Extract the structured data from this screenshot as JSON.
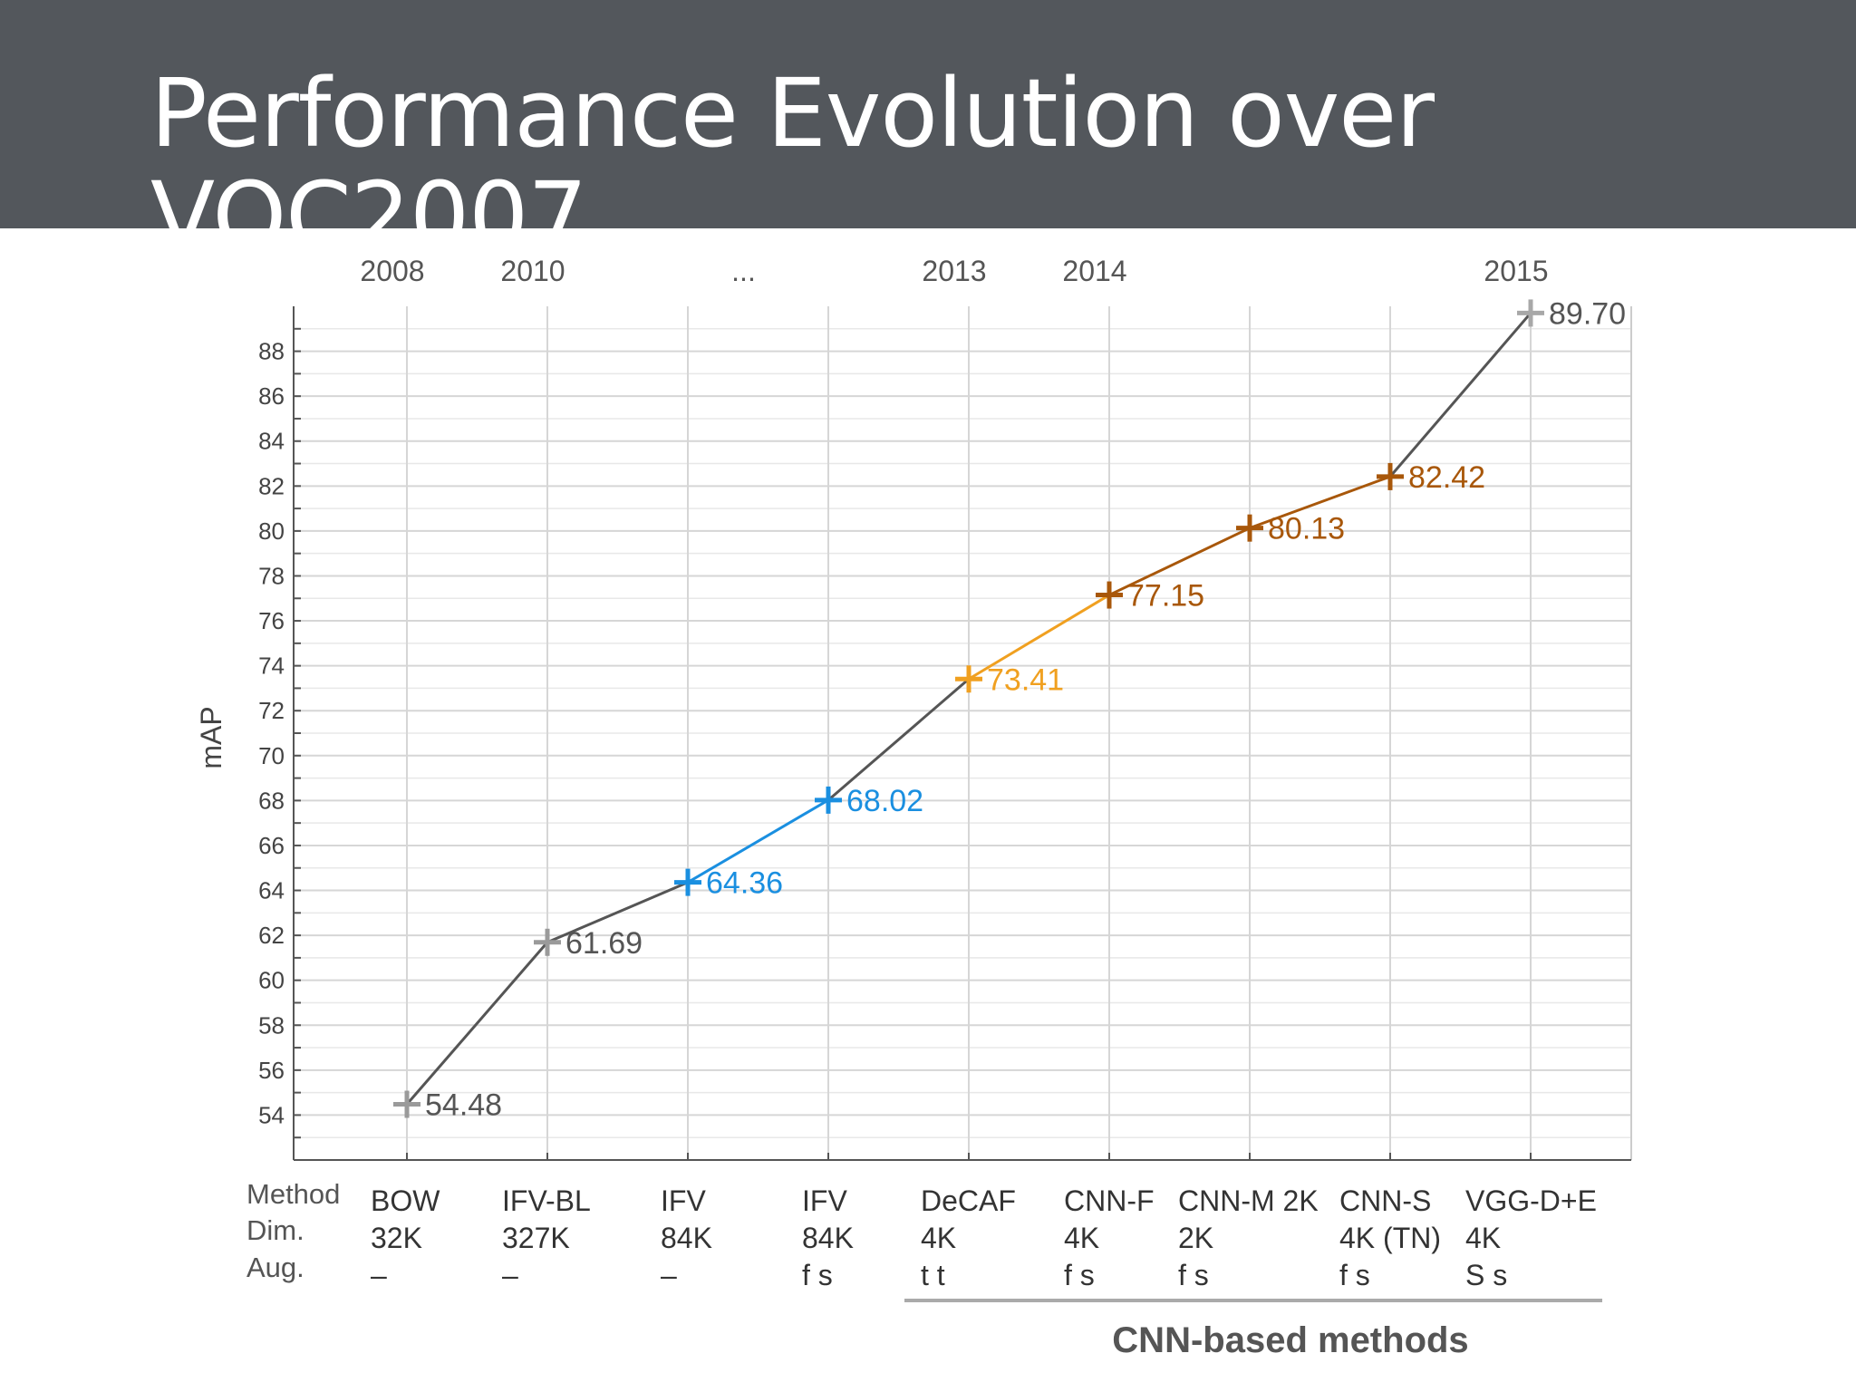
{
  "slide": {
    "title": "Performance Evolution over VOC2007"
  },
  "chart_data": {
    "type": "line",
    "ylabel": "mAP",
    "ylim": [
      52,
      90
    ],
    "yticks": [
      54,
      56,
      58,
      60,
      62,
      64,
      66,
      68,
      70,
      72,
      74,
      76,
      78,
      80,
      82,
      84,
      86,
      88
    ],
    "grid": true,
    "year_labels": [
      {
        "text": "2008",
        "index": 0
      },
      {
        "text": "2010",
        "index": 1
      },
      {
        "text": "...",
        "index": 2.5
      },
      {
        "text": "2013",
        "index": 4
      },
      {
        "text": "2014",
        "index": 5
      },
      {
        "text": "2015",
        "index": 8
      }
    ],
    "row_labels": [
      "Method",
      "Dim.",
      "Aug."
    ],
    "points": [
      {
        "method": "BOW",
        "dim": "32K",
        "aug": "–",
        "value": 54.48,
        "label": "54.48",
        "color": "#9a9a9a"
      },
      {
        "method": "IFV-BL",
        "dim": "327K",
        "aug": "–",
        "value": 61.69,
        "label": "61.69",
        "color": "#9a9a9a"
      },
      {
        "method": "IFV",
        "dim": "84K",
        "aug": "–",
        "value": 64.36,
        "label": "64.36",
        "color": "#1a8fe0"
      },
      {
        "method": "IFV",
        "dim": "84K",
        "aug": "f s",
        "value": 68.02,
        "label": "68.02",
        "color": "#1a8fe0"
      },
      {
        "method": "DeCAF",
        "dim": "4K",
        "aug": "t t",
        "value": 73.41,
        "label": "73.41",
        "color": "#f0a020"
      },
      {
        "method": "CNN-F",
        "dim": "4K",
        "aug": "f s",
        "value": 77.15,
        "label": "77.15",
        "color": "#a8570a"
      },
      {
        "method": "CNN-M 2K",
        "dim": "2K",
        "aug": "f s",
        "value": 80.13,
        "label": "80.13",
        "color": "#a8570a"
      },
      {
        "method": "CNN-S",
        "dim": "4K (TN)",
        "aug": "f s",
        "value": 82.42,
        "label": "82.42",
        "color": "#a8570a"
      },
      {
        "method": "VGG-D+E",
        "dim": "4K",
        "aug": "S s",
        "value": 89.7,
        "label": "89.70",
        "color": "#a8a8a8"
      }
    ],
    "segment_colors": [
      "#555555",
      "#555555",
      "#1a8fe0",
      "#555555",
      "#f0a020",
      "#a8570a",
      "#a8570a",
      "#555555"
    ],
    "group_label": "CNN-based methods"
  }
}
